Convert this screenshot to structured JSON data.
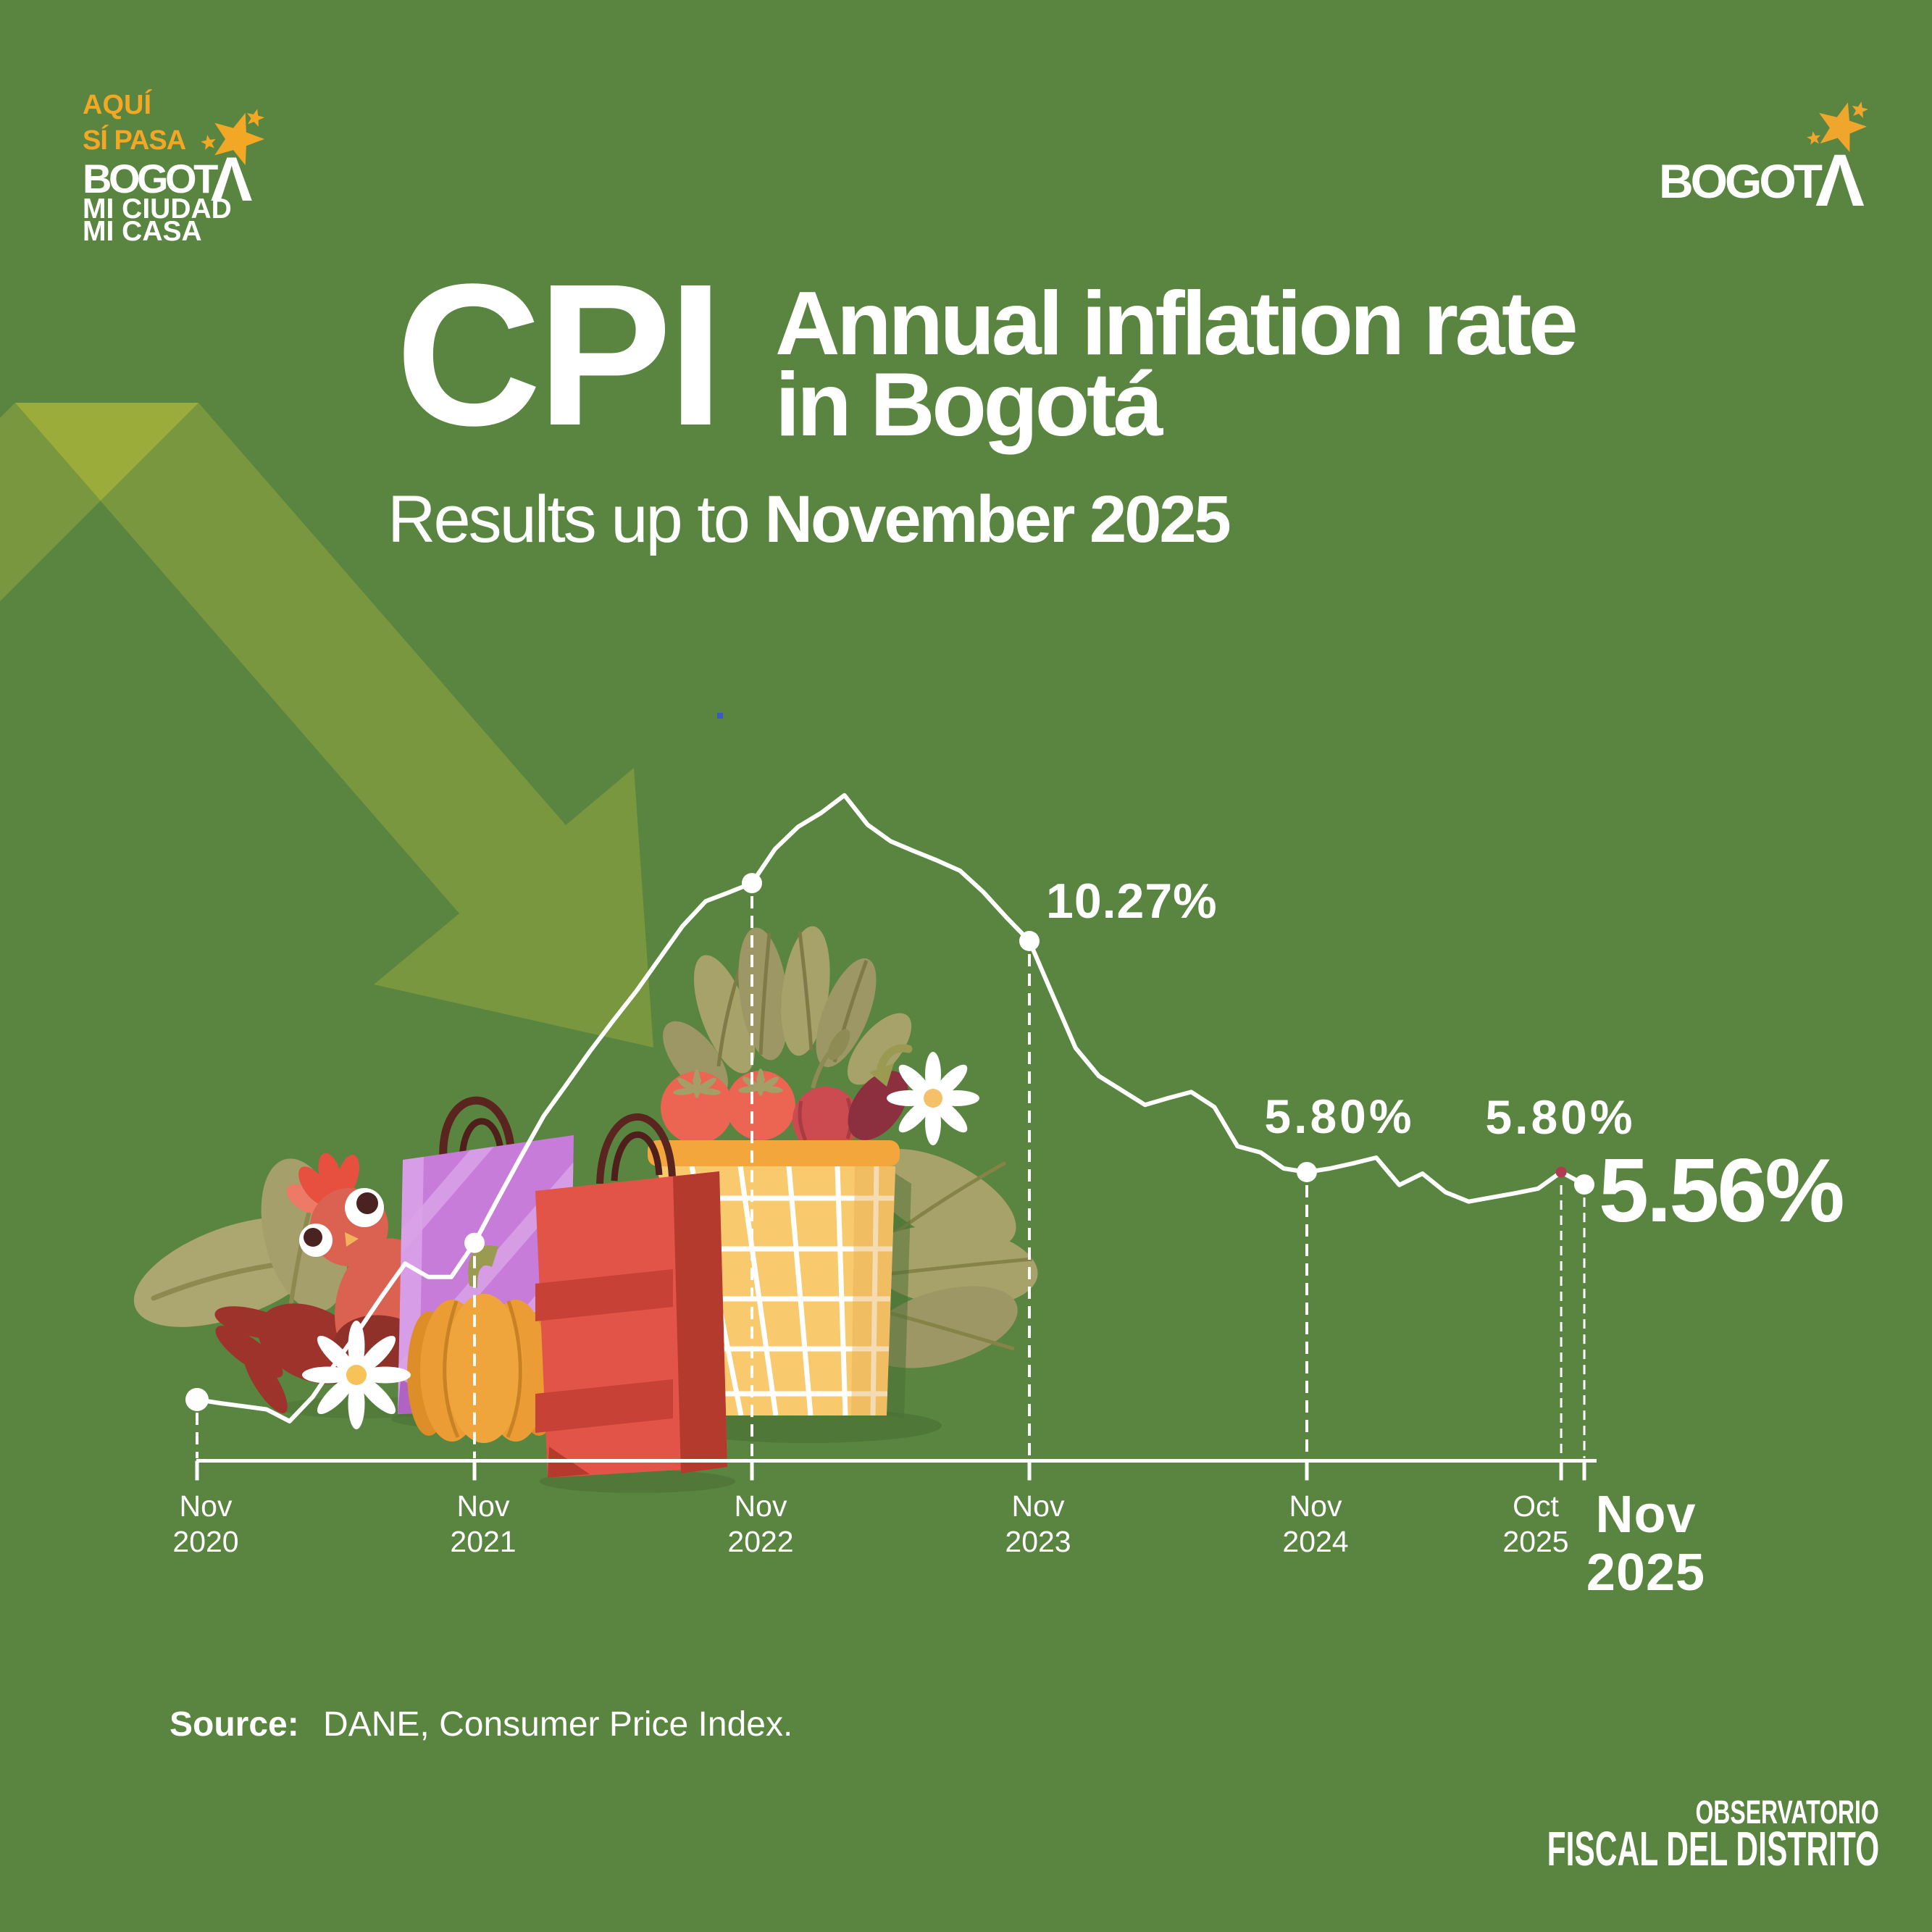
{
  "page": {
    "background_color": "#598540",
    "accent_yellow": "#F0A62C",
    "text_color": "#FFFFFF"
  },
  "logo_left": {
    "line1": "AQUÍ",
    "line2": "SÍ PASA",
    "wordmark": "BOGOT",
    "mountain_a": "Λ",
    "line4": "MI CIUDAD",
    "line5": "MI CASA"
  },
  "logo_right": {
    "wordmark": "BOGOT",
    "mountain_a": "Λ"
  },
  "title": {
    "acronym": "CPI",
    "heading_line1": "Annual inflation rate",
    "heading_line2": "in Bogotá",
    "subtitle_regular": "Results up to ",
    "subtitle_bold": "November 2025"
  },
  "chart_data": {
    "type": "line",
    "title": "CPI annual inflation rate in Bogotá, monthly, Nov 2020 - Nov 2025",
    "x_start": "Nov 2020",
    "x_end": "Nov 2025",
    "x_step": "month",
    "ylabel": "annual inflation rate (%)",
    "line_color": "#FFFFFF",
    "values": [
      1.4,
      1.33,
      1.27,
      1.21,
      0.98,
      1.45,
      2.11,
      2.74,
      3.4,
      4.03,
      3.77,
      3.77,
      4.43,
      5.27,
      6.09,
      6.89,
      7.51,
      8.14,
      8.73,
      9.3,
      9.93,
      10.56,
      11.04,
      11.21,
      11.39,
      12.05,
      12.48,
      12.75,
      13.09,
      12.52,
      12.2,
      12.01,
      11.83,
      11.63,
      11.22,
      10.73,
      10.27,
      9.23,
      8.2,
      7.66,
      7.38,
      7.1,
      7.23,
      7.35,
      7.06,
      6.3,
      6.18,
      5.87,
      5.8,
      5.87,
      5.97,
      6.08,
      5.55,
      5.77,
      5.41,
      5.23,
      5.31,
      5.39,
      5.48,
      5.8,
      5.56
    ],
    "marker_indices": [
      0,
      12,
      24,
      36,
      48,
      60
    ],
    "highlight_index": 59,
    "highlight_color": "#B23A53",
    "labeled_points": [
      {
        "index": 36,
        "month": "Nov 2023",
        "label": "10.27%"
      },
      {
        "index": 48,
        "month": "Nov 2024",
        "label": "5.80%"
      },
      {
        "index": 59,
        "month": "Oct 2025",
        "label": "5.80%"
      },
      {
        "index": 60,
        "month": "Nov 2025",
        "label": "5.56%"
      }
    ],
    "ticks": [
      {
        "index": 0,
        "line1": "Nov",
        "line2": "2020",
        "bold": false
      },
      {
        "index": 12,
        "line1": "Nov",
        "line2": "2021",
        "bold": false
      },
      {
        "index": 24,
        "line1": "Nov",
        "line2": "2022",
        "bold": false
      },
      {
        "index": 36,
        "line1": "Nov",
        "line2": "2023",
        "bold": false
      },
      {
        "index": 48,
        "line1": "Nov",
        "line2": "2024",
        "bold": false
      },
      {
        "index": 59,
        "line1": "Oct",
        "line2": "2025",
        "bold": false
      },
      {
        "index": 60,
        "line1": "Nov",
        "line2": "2025",
        "bold": true
      }
    ]
  },
  "source": {
    "label": "Source:",
    "text": " DANE, Consumer Price Index."
  },
  "footer": {
    "line1": "OBSERVATORIO",
    "line2": "FISCAL DEL DISTRITO"
  }
}
